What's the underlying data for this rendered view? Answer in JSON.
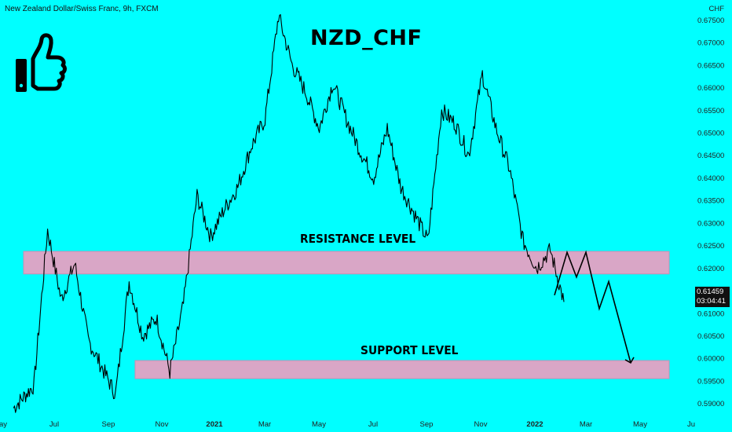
{
  "header": {
    "symbol": "New Zealand Dollar/Swiss Franc, 9h, FXCM",
    "currency": "CHF"
  },
  "annotations": {
    "title": "NZD_CHF",
    "resistance_label": "RESISTANCE LEVEL",
    "support_label": "SUPPORT LEVEL",
    "thumb_icon": "thumbs-up-icon"
  },
  "price_badge": {
    "last_price": "0.61459",
    "countdown": "03:04:41"
  },
  "colors": {
    "background": "#00ffff",
    "price_line": "#000000",
    "zone_fill": "#d9a6c6",
    "zone_border": "#c98fb4"
  },
  "chart_data": {
    "type": "line",
    "title": "NZD_CHF",
    "ylim": [
      0.5875,
      0.6775
    ],
    "y_ticks": [
      "0.59000",
      "0.59500",
      "0.60000",
      "0.60500",
      "0.61000",
      "0.61459",
      "0.62000",
      "0.62500",
      "0.63000",
      "0.63500",
      "0.64000",
      "0.64500",
      "0.65000",
      "0.65500",
      "0.66000",
      "0.66500",
      "0.67000",
      "0.67500"
    ],
    "x_ticks": [
      "May",
      "Jul",
      "Sep",
      "Nov",
      "2021",
      "Mar",
      "May",
      "Jul",
      "Sep",
      "Nov",
      "2022",
      "Mar",
      "May",
      "Ju"
    ],
    "series": [
      {
        "x": [
          "May 2020",
          "Jun 2020",
          "Jun 2020",
          "Jul 2020",
          "Jul 2020",
          "Aug 2020",
          "Aug 2020",
          "Sep 2020",
          "Sep 2020",
          "Oct 2020",
          "Oct 2020",
          "Nov 2020",
          "Nov 2020",
          "Dec 2020",
          "Dec 2020",
          "Jan 2021",
          "Jan 2021",
          "Feb 2021",
          "Feb 2021",
          "Mar 2021",
          "Mar 2021",
          "Apr 2021",
          "Apr 2021",
          "May 2021",
          "May 2021",
          "Jun 2021",
          "Jun 2021",
          "Jul 2021",
          "Jul 2021",
          "Aug 2021",
          "Aug 2021",
          "Sep 2021",
          "Sep 2021",
          "Oct 2021",
          "Oct 2021",
          "Nov 2021",
          "Nov 2021",
          "Dec 2021",
          "Dec 2021",
          "Jan 2022",
          "Jan 2022"
        ],
        "values": [
          0.589,
          0.594,
          0.6285,
          0.613,
          0.621,
          0.604,
          0.598,
          0.592,
          0.617,
          0.605,
          0.609,
          0.597,
          0.612,
          0.636,
          0.627,
          0.633,
          0.638,
          0.647,
          0.653,
          0.676,
          0.665,
          0.659,
          0.651,
          0.661,
          0.653,
          0.646,
          0.64,
          0.651,
          0.638,
          0.632,
          0.626,
          0.655,
          0.652,
          0.645,
          0.663,
          0.651,
          0.642,
          0.626,
          0.62,
          0.624,
          0.6125
        ]
      }
    ],
    "levels": [
      {
        "name": "RESISTANCE LEVEL",
        "low": 0.6187,
        "high": 0.6237
      },
      {
        "name": "SUPPORT LEVEL",
        "low": 0.5955,
        "high": 0.5995
      }
    ],
    "projection": {
      "x": [
        "Jan 2022",
        "Feb 2022",
        "Feb 2022",
        "Mar 2022",
        "Mar 2022",
        "Mar 2022",
        "May 2022"
      ],
      "values": [
        0.614,
        0.6235,
        0.618,
        0.6235,
        0.611,
        0.617,
        0.599
      ]
    },
    "last_price": 0.61459
  }
}
